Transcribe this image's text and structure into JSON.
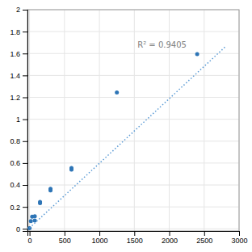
{
  "chart_data": {
    "type": "scatter",
    "series": [
      {
        "type": "scatter",
        "color": "#2E75B6",
        "x": [
          0,
          18.75,
          37.5,
          75,
          75,
          150,
          150,
          300,
          300,
          600,
          600,
          1250,
          2400
        ],
        "values": [
          0.005,
          0.07,
          0.11,
          0.115,
          0.075,
          0.235,
          0.245,
          0.35,
          0.365,
          0.54,
          0.555,
          1.245,
          1.595
        ]
      },
      {
        "type": "line",
        "color": "#5B9BD5",
        "line_style": "dotted",
        "x": [
          0,
          2800
        ],
        "values": [
          0.008,
          1.66
        ]
      }
    ],
    "annotations": [
      "R² = 0.9405"
    ],
    "xlim": [
      -30,
      3000
    ],
    "ylim": [
      -0.02,
      2.0
    ],
    "xticks": [
      0,
      500,
      1000,
      1500,
      2000,
      2500,
      3000
    ],
    "yticks": [
      0,
      0.2,
      0.4,
      0.6,
      0.8,
      1,
      1.2,
      1.4,
      1.6,
      1.8,
      2
    ],
    "grid": true
  }
}
